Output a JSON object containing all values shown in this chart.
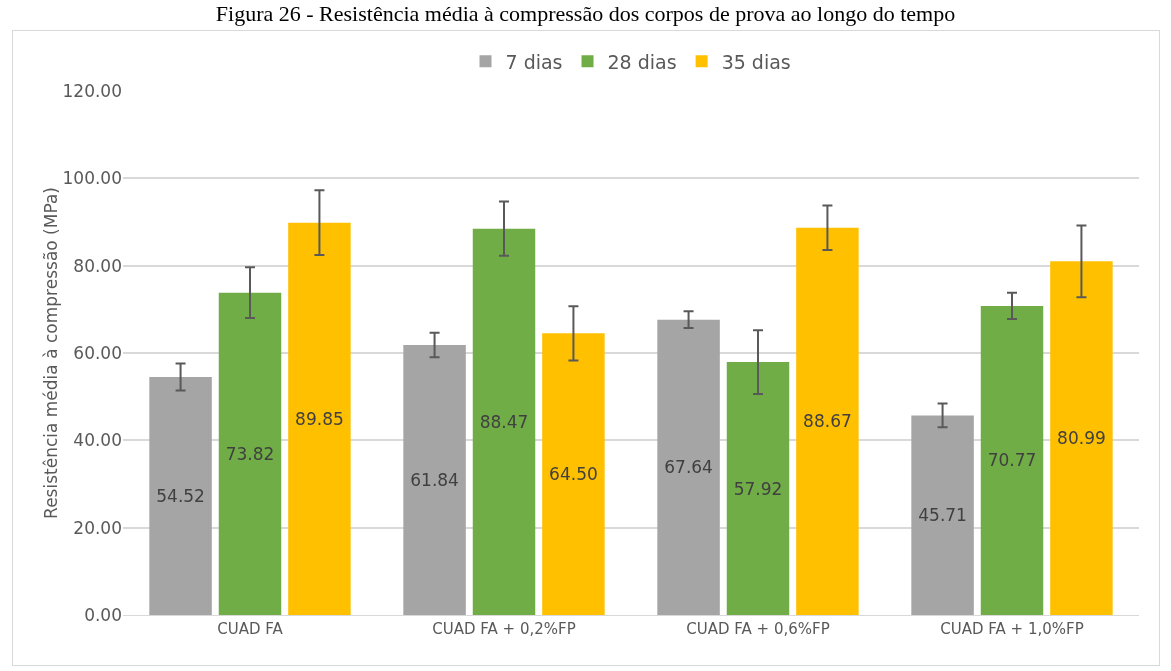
{
  "chart_data": {
    "type": "bar",
    "title": "Figura 26 - Resistência média à compressão dos corpos de prova ao longo do tempo",
    "ylabel": "Resistência média à compressão (MPa)",
    "categories": [
      "CUAD FA",
      "CUAD FA + 0,2%FP",
      "CUAD FA + 0,6%FP",
      "CUAD FA + 1,0%FP"
    ],
    "series": [
      {
        "name": "7 dias",
        "color": "#a5a5a5",
        "values": [
          54.52,
          61.84,
          67.64,
          45.71
        ],
        "value_labels": [
          "54.52",
          "61.84",
          "67.64",
          "45.71"
        ],
        "errors": [
          3.1,
          2.8,
          1.9,
          2.7
        ]
      },
      {
        "name": "28 dias",
        "color": "#70ad47",
        "values": [
          73.82,
          88.47,
          57.92,
          70.77
        ],
        "value_labels": [
          "73.82",
          "88.47",
          "57.92",
          "70.77"
        ],
        "errors": [
          5.8,
          6.2,
          7.3,
          3.0
        ]
      },
      {
        "name": "35 dias",
        "color": "#ffc000",
        "values": [
          89.85,
          64.5,
          88.67,
          80.99
        ],
        "value_labels": [
          "89.85",
          "64.50",
          "88.67",
          "80.99"
        ],
        "errors": [
          7.4,
          6.2,
          5.1,
          8.2
        ]
      }
    ],
    "ylim": [
      0,
      120
    ],
    "yticks": [
      {
        "value": 0,
        "label": "0.00"
      },
      {
        "value": 20,
        "label": "20.00"
      },
      {
        "value": 40,
        "label": "40.00"
      },
      {
        "value": 60,
        "label": "60.00"
      },
      {
        "value": 80,
        "label": "80.00"
      },
      {
        "value": 100,
        "label": "100.00"
      },
      {
        "value": 120,
        "label": "120.00"
      }
    ],
    "grid": "y",
    "legend": "top"
  }
}
